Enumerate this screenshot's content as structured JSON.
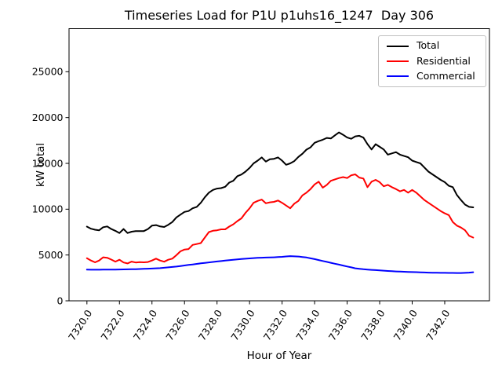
{
  "chart_data": {
    "type": "line",
    "title": "Timeseries Load for P1U p1uhs16_1247  Day 306",
    "xlabel": "Hour of Year",
    "ylabel": "kW total",
    "xlim": [
      7318.9,
      7344.75
    ],
    "ylim": [
      0,
      29700
    ],
    "x_ticks": [
      7320,
      7322,
      7324,
      7326,
      7328,
      7330,
      7332,
      7334,
      7336,
      7338,
      7340,
      7342
    ],
    "x_tick_labels": [
      "7320.0",
      "7322.0",
      "7324.0",
      "7326.0",
      "7328.0",
      "7330.0",
      "7332.0",
      "7334.0",
      "7336.0",
      "7338.0",
      "7340.0",
      "7342.0"
    ],
    "y_ticks": [
      0,
      5000,
      10000,
      15000,
      20000,
      25000
    ],
    "y_tick_labels": [
      "0",
      "5000",
      "10000",
      "15000",
      "20000",
      "25000"
    ],
    "grid": false,
    "legend_position": "upper right",
    "series": [
      {
        "name": "Total",
        "color": "#000000",
        "x_start": 7320.0,
        "x_step": 0.25,
        "values": [
          8100,
          7870,
          7760,
          7700,
          8030,
          8120,
          7830,
          7640,
          7400,
          7830,
          7400,
          7540,
          7610,
          7600,
          7610,
          7830,
          8200,
          8260,
          8120,
          8060,
          8300,
          8600,
          9100,
          9400,
          9700,
          9800,
          10100,
          10250,
          10700,
          11300,
          11800,
          12100,
          12250,
          12300,
          12450,
          12900,
          13100,
          13600,
          13780,
          14100,
          14500,
          15000,
          15300,
          15650,
          15200,
          15450,
          15500,
          15650,
          15300,
          14850,
          15000,
          15250,
          15700,
          16050,
          16500,
          16750,
          17250,
          17430,
          17580,
          17780,
          17720,
          18060,
          18380,
          18120,
          17820,
          17680,
          17950,
          18010,
          17810,
          17100,
          16520,
          17090,
          16810,
          16520,
          15950,
          16090,
          16230,
          15950,
          15810,
          15670,
          15300,
          15150,
          15000,
          14550,
          14100,
          13800,
          13500,
          13200,
          12950,
          12550,
          12400,
          11550,
          11000,
          10500,
          10250,
          10200
        ]
      },
      {
        "name": "Residential",
        "color": "#ff0000",
        "x_start": 7320.0,
        "x_step": 0.25,
        "values": [
          4650,
          4400,
          4200,
          4400,
          4750,
          4700,
          4500,
          4280,
          4480,
          4180,
          4080,
          4280,
          4180,
          4220,
          4200,
          4230,
          4400,
          4600,
          4400,
          4270,
          4480,
          4600,
          4980,
          5400,
          5600,
          5650,
          6100,
          6200,
          6300,
          6900,
          7500,
          7650,
          7700,
          7800,
          7800,
          8100,
          8350,
          8700,
          9000,
          9600,
          10100,
          10700,
          10900,
          11050,
          10650,
          10750,
          10800,
          10950,
          10700,
          10400,
          10100,
          10600,
          10900,
          11500,
          11800,
          12200,
          12700,
          13000,
          12350,
          12650,
          13100,
          13250,
          13400,
          13500,
          13400,
          13700,
          13800,
          13450,
          13350,
          12400,
          13000,
          13200,
          12950,
          12500,
          12650,
          12400,
          12200,
          11950,
          12100,
          11800,
          12100,
          11800,
          11400,
          11000,
          10700,
          10400,
          10100,
          9800,
          9550,
          9350,
          8600,
          8200,
          8000,
          7700,
          7100,
          6900
        ]
      },
      {
        "name": "Commercial",
        "color": "#0000ff",
        "x_start": 7320.0,
        "x_step": 0.25,
        "values": [
          3400,
          3395,
          3390,
          3395,
          3400,
          3405,
          3410,
          3415,
          3420,
          3428,
          3435,
          3443,
          3450,
          3468,
          3485,
          3503,
          3520,
          3545,
          3570,
          3610,
          3650,
          3695,
          3740,
          3800,
          3860,
          3915,
          3970,
          4030,
          4090,
          4140,
          4190,
          4240,
          4290,
          4340,
          4390,
          4435,
          4480,
          4520,
          4560,
          4595,
          4630,
          4660,
          4690,
          4705,
          4720,
          4735,
          4750,
          4775,
          4800,
          4840,
          4880,
          4855,
          4830,
          4780,
          4730,
          4640,
          4550,
          4450,
          4350,
          4250,
          4150,
          4050,
          3950,
          3850,
          3750,
          3650,
          3550,
          3500,
          3450,
          3415,
          3380,
          3350,
          3320,
          3290,
          3260,
          3235,
          3210,
          3190,
          3170,
          3155,
          3140,
          3125,
          3110,
          3095,
          3080,
          3070,
          3060,
          3055,
          3050,
          3045,
          3040,
          3035,
          3030,
          3050,
          3080,
          3120
        ]
      }
    ]
  }
}
